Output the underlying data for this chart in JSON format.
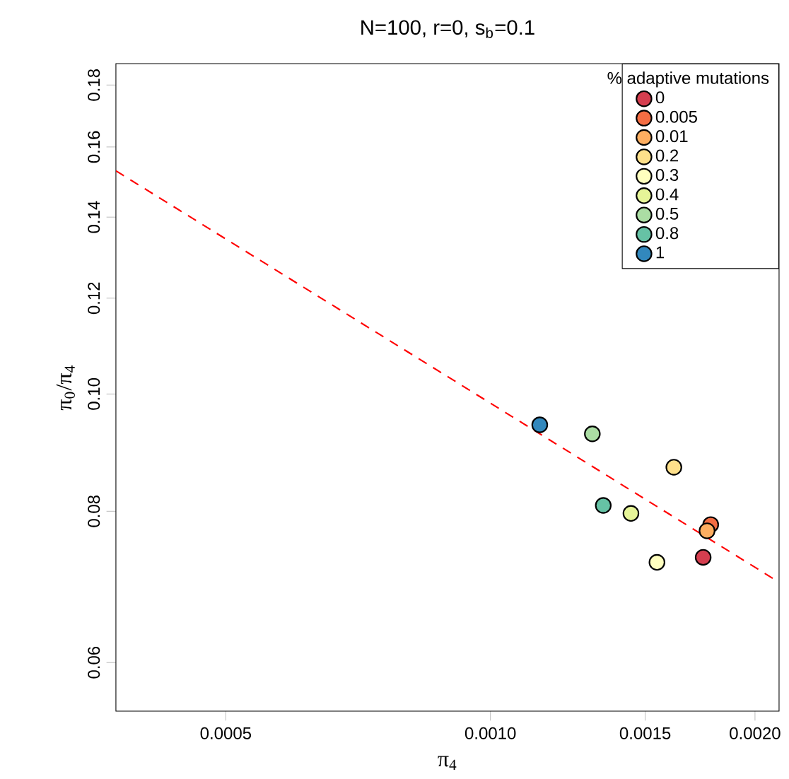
{
  "chart_data": {
    "type": "scatter",
    "title": "N=100, r=0, s$_{b}$=0.1",
    "xlabel": "π$_{4}$",
    "ylabel": "π$_{0}$/π$_{4}$",
    "legend_title": "% adaptive mutations",
    "log": "xy",
    "marker": "circle",
    "legend": "top right",
    "xlim": [
      0.000375,
      0.00213
    ],
    "ylim": [
      0.0547,
      0.1875
    ],
    "xticks": [
      0.0005,
      {
        "value": 0.001,
        "label": "0.0010"
      },
      0.0015,
      {
        "value": 0.002,
        "label": "0.0020"
      }
    ],
    "yticks": [
      0.06,
      0.08,
      {
        "value": 0.1,
        "label": "0.10"
      },
      0.12,
      0.14,
      0.16,
      0.18
    ],
    "series": [
      {
        "name": "0",
        "color": "#d53e4f",
        "x": [
          0.001746
        ],
        "values": [
          0.0733
        ]
      },
      {
        "name": "0.005",
        "color": "#f46d43",
        "x": [
          0.001781
        ],
        "values": [
          0.078
        ]
      },
      {
        "name": "0.01",
        "color": "#fdae61",
        "x": [
          0.001764
        ],
        "values": [
          0.0771
        ]
      },
      {
        "name": "0.2",
        "color": "#fee08b",
        "x": [
          0.001617
        ],
        "values": [
          0.087
        ]
      },
      {
        "name": "0.3",
        "color": "#ffffbf",
        "x": [
          0.001547
        ],
        "values": [
          0.0726
        ]
      },
      {
        "name": "0.4",
        "color": "#e6f598",
        "x": [
          0.001445
        ],
        "values": [
          0.0797
        ]
      },
      {
        "name": "0.5",
        "color": "#abdda4",
        "x": [
          0.001306
        ],
        "values": [
          0.0927
        ]
      },
      {
        "name": "0.8",
        "color": "#66c2a5",
        "x": [
          0.001344
        ],
        "values": [
          0.0809
        ]
      },
      {
        "name": "1",
        "color": "#3288bd",
        "x": [
          0.001138
        ],
        "values": [
          0.0943
        ]
      },
      {
        "type": "line",
        "color": "#ff0000",
        "line_style": "dashed",
        "marker": "none",
        "x": [
          0.000375,
          0.00213
        ],
        "values": [
          0.1529,
          0.0699
        ]
      }
    ]
  }
}
